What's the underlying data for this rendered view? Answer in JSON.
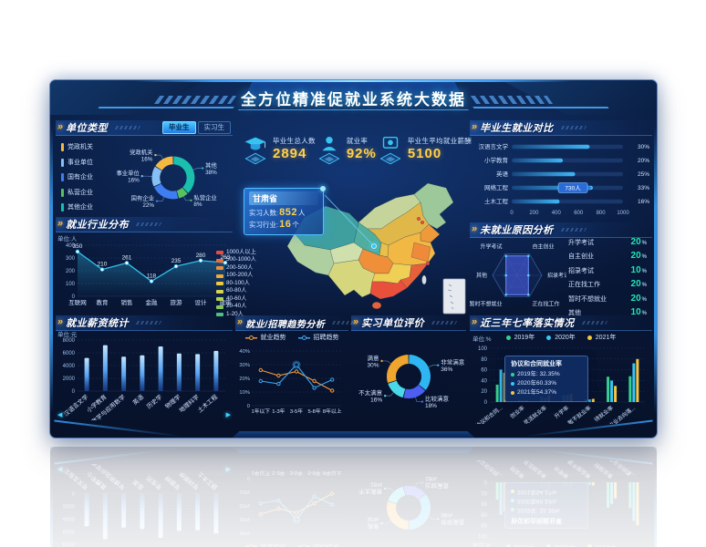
{
  "page": {
    "title": "全方位精准促就业系统大数据"
  },
  "stats": [
    {
      "icon": "graduate-cap-icon",
      "label": "毕业生总人数",
      "value": "2894"
    },
    {
      "icon": "person-icon",
      "label": "就业率",
      "value": "92%"
    },
    {
      "icon": "salary-icon",
      "label": "毕业生平均就业薪酬",
      "value": "5100"
    }
  ],
  "map": {
    "tooltip": {
      "province": "甘肃省",
      "rows": [
        {
          "label": "实习人数:",
          "value": "852",
          "unit": "人"
        },
        {
          "label": "实习行业:",
          "value": "16",
          "unit": "个"
        }
      ]
    },
    "legend": [
      {
        "label": "1000人以上",
        "color": "#e84c3d"
      },
      {
        "label": "500-1000人",
        "color": "#ef6a3a"
      },
      {
        "label": "200-500人",
        "color": "#f08c38"
      },
      {
        "label": "100-200人",
        "color": "#f2a83c"
      },
      {
        "label": "80-100人",
        "color": "#f0c83e"
      },
      {
        "label": "60-80人",
        "color": "#d8d44c"
      },
      {
        "label": "40-60人",
        "color": "#b0d44e"
      },
      {
        "label": "20-40人",
        "color": "#84c85c"
      },
      {
        "label": "1-20人",
        "color": "#4fbe7e"
      }
    ]
  },
  "panels": {
    "unit_type": {
      "title": "单位类型",
      "tabs": [
        {
          "label": "毕业生",
          "active": true
        },
        {
          "label": "实习生",
          "active": false
        }
      ]
    },
    "industry": {
      "title": "就业行业分布"
    },
    "salary": {
      "title": "就业薪资统计"
    },
    "compare": {
      "title": "毕业生就业对比"
    },
    "unemployed": {
      "title": "未就业原因分析"
    },
    "seven_rates": {
      "title": "近三年七率落实情况"
    },
    "trend": {
      "title": "就业/招聘趋势分析"
    },
    "evaluation": {
      "title": "实习单位评价"
    }
  },
  "chart_data": [
    {
      "id": "unit_type",
      "type": "pie",
      "labels": [
        "党政机关",
        "事业单位",
        "国有企业",
        "私营企业",
        "其他"
      ],
      "legend": [
        "党政机关",
        "事业单位",
        "国有企业",
        "私营企业",
        "其他企业"
      ],
      "values": [
        16,
        16,
        22,
        8,
        38
      ],
      "colors": [
        "#f5b942",
        "#86c0f5",
        "#3f7ef0",
        "#57c15f",
        "#1bbfae"
      ]
    },
    {
      "id": "industry",
      "type": "line",
      "categories": [
        "互联网",
        "教育",
        "销售",
        "金融",
        "旅游",
        "设计",
        "建筑"
      ],
      "values": [
        350,
        210,
        261,
        118,
        235,
        280,
        263
      ],
      "ylabel": "单位:人",
      "ylim": [
        0,
        400
      ],
      "color": "#35c8f5",
      "grid": true
    },
    {
      "id": "salary",
      "type": "bar",
      "categories": [
        "汉语言文学",
        "小学教育",
        "数学与应用数学",
        "英语",
        "历史学",
        "物理学",
        "地理科学",
        "土木工程"
      ],
      "values": [
        5200,
        7200,
        5400,
        5600,
        7000,
        5900,
        5800,
        6300
      ],
      "ylabel": "单位:元",
      "ylim": [
        0,
        8000
      ]
    },
    {
      "id": "compare",
      "type": "bar-horizontal",
      "categories": [
        "汉语言文学",
        "小学教育",
        "英语",
        "网络工程",
        "土木工程"
      ],
      "values": [
        700,
        460,
        570,
        730,
        430
      ],
      "percents": [
        "30%",
        "20%",
        "25%",
        "33%",
        "16%"
      ],
      "xlim": [
        0,
        1000
      ],
      "ticks": [
        0,
        200,
        400,
        600,
        800,
        1000
      ],
      "tooltip": {
        "index": 3,
        "text": "730人"
      }
    },
    {
      "id": "unemployed",
      "type": "radar",
      "unit": "%",
      "axes": [
        "升学考试",
        "自主创业",
        "招录考试",
        "正在找工作",
        "暂时不想就业",
        "其他"
      ],
      "values": [
        20,
        20,
        10,
        20,
        20,
        10
      ],
      "max": 22,
      "stats": [
        {
          "label": "升学考试",
          "value": "20"
        },
        {
          "label": "自主创业",
          "value": "20"
        },
        {
          "label": "招录考试",
          "value": "10"
        },
        {
          "label": "正在找工作",
          "value": "20"
        },
        {
          "label": "暂时不想就业",
          "value": "20"
        },
        {
          "label": "其他",
          "value": "10"
        }
      ]
    },
    {
      "id": "seven_rates",
      "type": "bar-grouped",
      "categories": [
        "协议和合同就业率",
        "创业率",
        "灵活就业率",
        "升学率",
        "暂不就业率",
        "待就业率",
        "毕业去向落实率"
      ],
      "series": [
        {
          "name": "2019年",
          "color": "#35d08f",
          "values": [
            32.35,
            3,
            10,
            13,
            5,
            47,
            48
          ]
        },
        {
          "name": "2020年",
          "color": "#38c6f4",
          "values": [
            60.33,
            3,
            8,
            13,
            5,
            40,
            72
          ]
        },
        {
          "name": "2021年",
          "color": "#f5c542",
          "values": [
            54.37,
            3,
            13,
            15,
            6,
            30,
            80
          ]
        }
      ],
      "ylabel": "单位:%",
      "ylim": [
        0,
        100
      ],
      "tooltip": {
        "title": "协议和合同就业率",
        "rows": [
          "2019年: 32.35%",
          "2020年60.33%",
          "2021年54.37%"
        ]
      }
    },
    {
      "id": "trend",
      "type": "line-multi",
      "categories": [
        "1年以下",
        "1-3年",
        "3-5年",
        "5-8年",
        "8年以上"
      ],
      "series": [
        {
          "name": "就业趋势",
          "color": "#f2983a",
          "values": [
            26,
            22,
            25,
            18,
            11
          ]
        },
        {
          "name": "招聘趋势",
          "color": "#3aa4f0",
          "values": [
            18,
            16,
            30,
            13,
            19
          ]
        }
      ],
      "ylim": [
        0,
        40
      ],
      "yticks": [
        "0",
        "10%",
        "20%",
        "30%",
        "40%"
      ],
      "emphasis": {
        "series": 1,
        "index": 2
      }
    },
    {
      "id": "evaluation",
      "type": "pie",
      "labels": [
        "非常满意",
        "比较满意",
        "不太满意",
        "满意"
      ],
      "values": [
        36,
        18,
        16,
        30
      ],
      "colors": [
        "#2fb6f2",
        "#4d5ef2",
        "#4ad8e8",
        "#f0a62e"
      ]
    }
  ]
}
